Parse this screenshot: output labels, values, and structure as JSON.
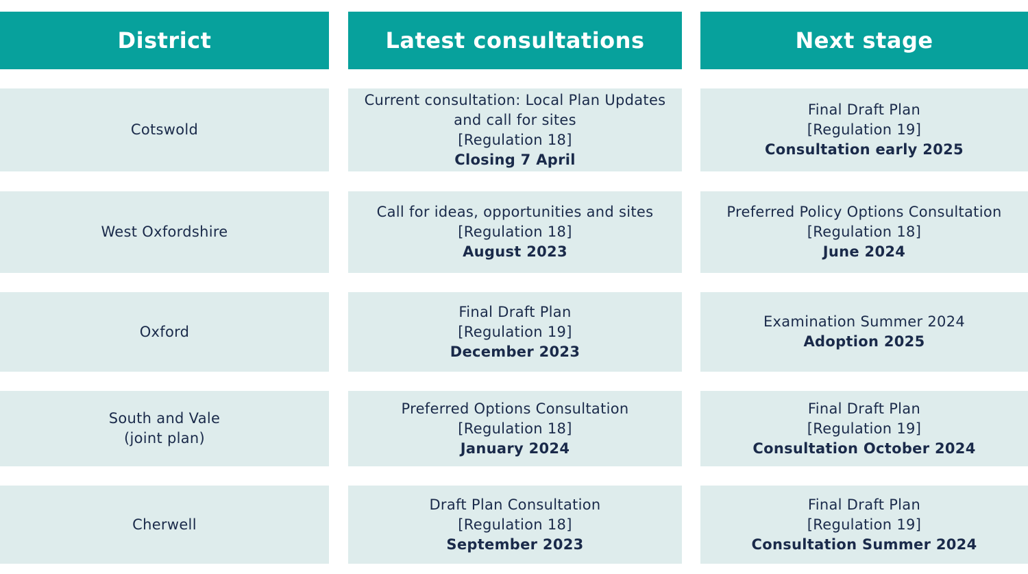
{
  "headers": {
    "district": "District",
    "latest": "Latest consultations",
    "next": "Next stage"
  },
  "rows": [
    {
      "district": [
        "Cotswold"
      ],
      "latest": [
        "Current consultation: Local Plan Updates",
        "and call for sites",
        "[Regulation 18]"
      ],
      "latest_bold": "Closing 7 April",
      "next": [
        "Final Draft Plan",
        "[Regulation 19]"
      ],
      "next_bold": "Consultation early 2025"
    },
    {
      "district": [
        "West Oxfordshire"
      ],
      "latest": [
        "Call for ideas, opportunities and sites",
        "[Regulation 18]"
      ],
      "latest_bold": "August 2023",
      "next": [
        "Preferred Policy Options Consultation",
        "[Regulation 18]"
      ],
      "next_bold": "June 2024"
    },
    {
      "district": [
        "Oxford"
      ],
      "latest": [
        "Final Draft Plan",
        "[Regulation 19]"
      ],
      "latest_bold": "December 2023",
      "next": [
        "Examination Summer 2024"
      ],
      "next_bold": "Adoption 2025"
    },
    {
      "district": [
        "South and Vale",
        "(joint plan)"
      ],
      "latest": [
        "Preferred Options Consultation",
        "[Regulation 18]"
      ],
      "latest_bold": "January 2024",
      "next": [
        "Final Draft Plan",
        "[Regulation 19]"
      ],
      "next_bold": "Consultation October 2024"
    },
    {
      "district": [
        "Cherwell"
      ],
      "latest": [
        "Draft Plan Consultation",
        "[Regulation 18]"
      ],
      "latest_bold": "September 2023",
      "next": [
        "Final Draft Plan",
        "[Regulation 19]"
      ],
      "next_bold": "Consultation Summer 2024"
    }
  ]
}
